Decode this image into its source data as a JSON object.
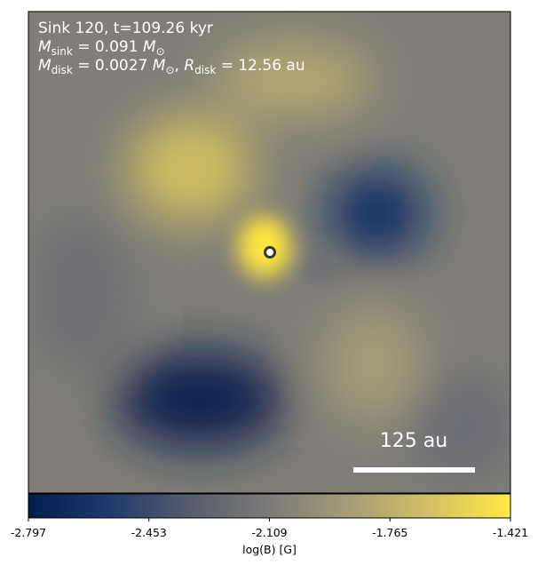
{
  "chart_data": {
    "type": "image",
    "annotations": [
      [
        {
          "text": "Sink 120, t=109.26 kyr"
        }
      ],
      [
        {
          "text": "M",
          "style": "italic"
        },
        {
          "text": "sink",
          "style": "sub"
        },
        {
          "text": " = 0.091 "
        },
        {
          "text": "M",
          "style": "italic"
        },
        {
          "text": "⊙",
          "style": "sub"
        }
      ],
      [
        {
          "text": "M",
          "style": "italic"
        },
        {
          "text": "disk",
          "style": "sub"
        },
        {
          "text": " = 0.0027 "
        },
        {
          "text": "M",
          "style": "italic"
        },
        {
          "text": "⊙",
          "style": "sub"
        },
        {
          "text": ", "
        },
        {
          "text": "R",
          "style": "italic"
        },
        {
          "text": "disk",
          "style": "sub"
        },
        {
          "text": " = 12.56 au"
        }
      ]
    ],
    "scale_bar": "125 au",
    "colorbar": {
      "label": "log(B) [G]",
      "lim": [
        -2.797,
        -1.421
      ],
      "ticks": [
        -2.797,
        -2.453,
        -2.109,
        -1.765,
        -1.421
      ],
      "colors": [
        "#00204c",
        "#1f3a6e",
        "#575c6d",
        "#7c7b78",
        "#a69d75",
        "#d3c164",
        "#ffe945"
      ]
    }
  }
}
